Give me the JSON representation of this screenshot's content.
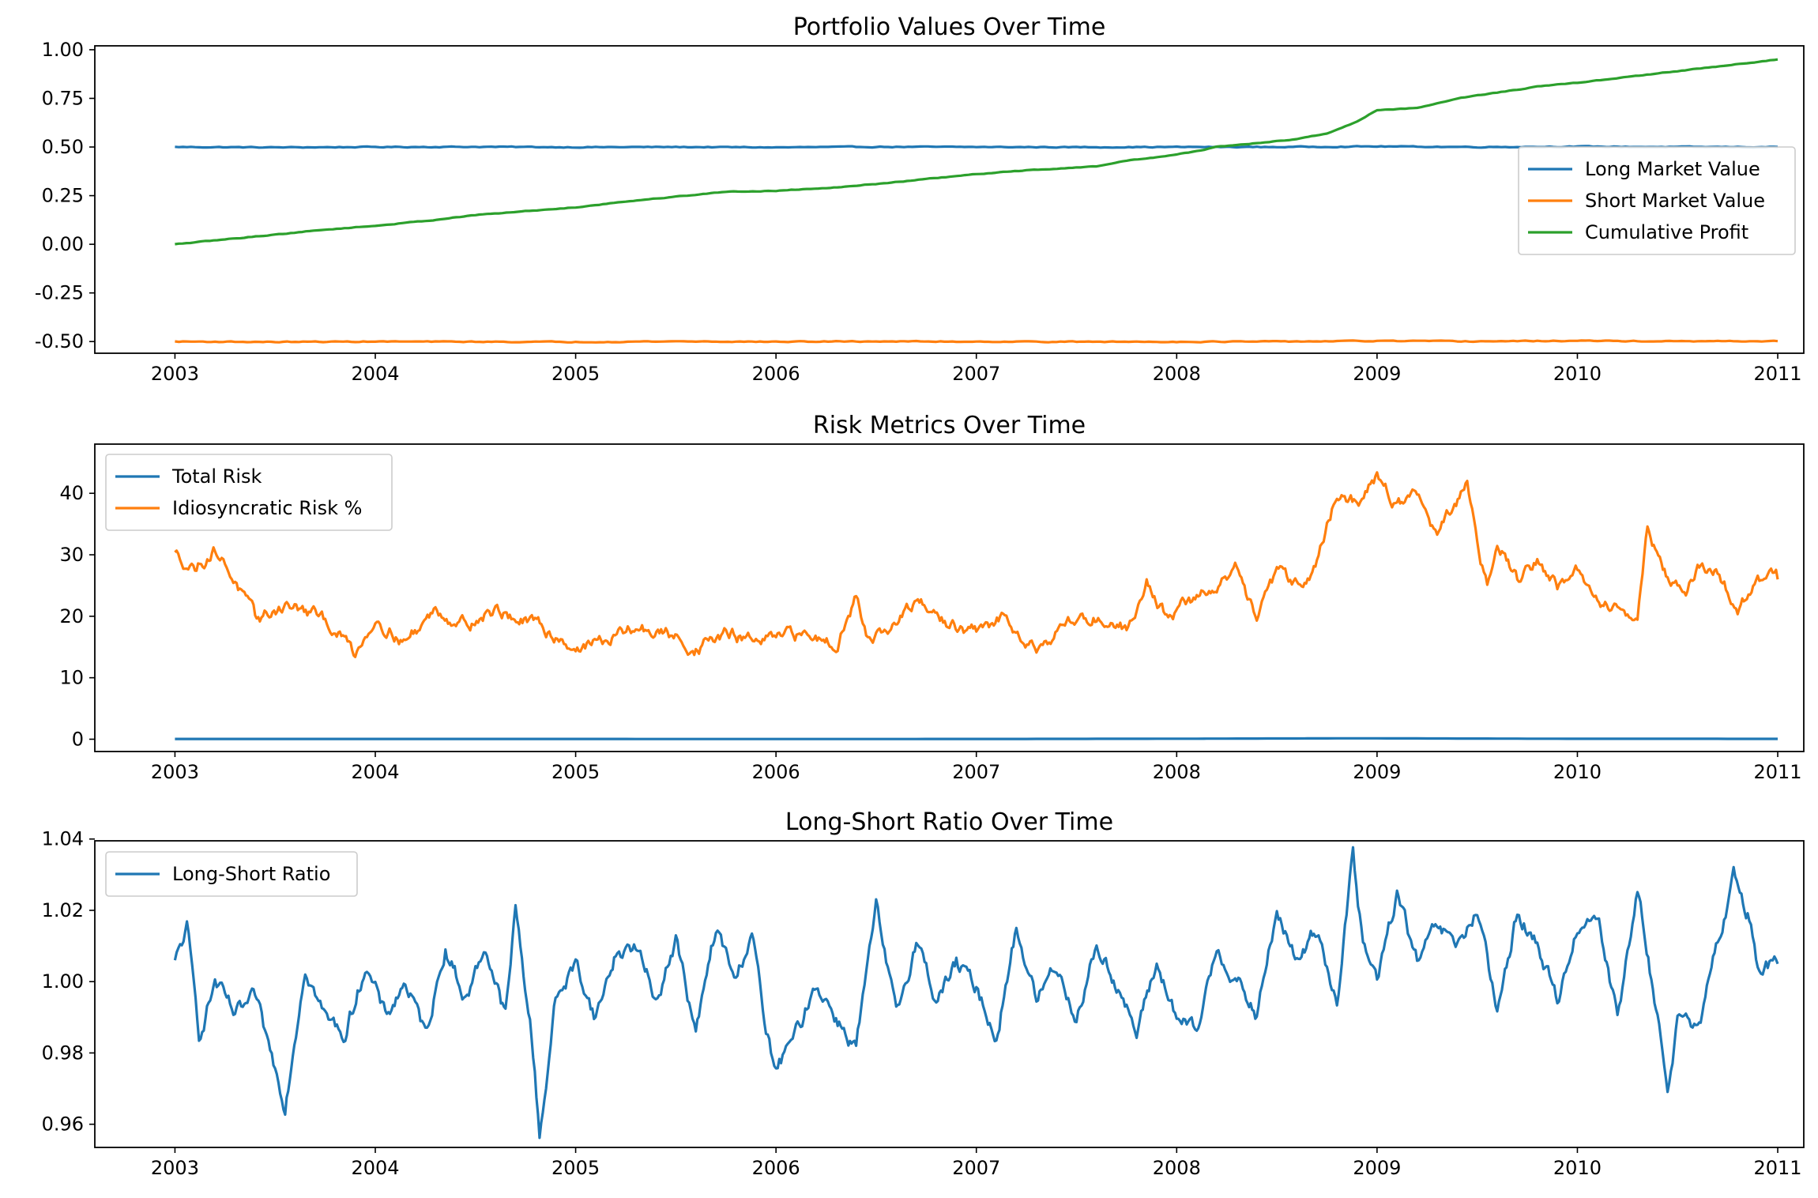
{
  "colors": {
    "blue": "#1f77b4",
    "orange": "#ff7f0e",
    "green": "#2ca02c"
  },
  "chart_data": [
    {
      "type": "line",
      "title": "Portfolio Values Over Time",
      "xlabel": "",
      "ylabel": "",
      "xlim": [
        2002.6,
        2011.13
      ],
      "ylim": [
        -0.56,
        1.02
      ],
      "xticks": [
        "2003",
        "2004",
        "2005",
        "2006",
        "2007",
        "2008",
        "2009",
        "2010",
        "2011"
      ],
      "yticks": [
        "-0.50",
        "-0.25",
        "0.00",
        "0.25",
        "0.50",
        "0.75",
        "1.00"
      ],
      "ytick_values": [
        -0.5,
        -0.25,
        0.0,
        0.25,
        0.5,
        0.75,
        1.0
      ],
      "legend_position": "center-right",
      "grid": false,
      "series": [
        {
          "name": "Long Market Value",
          "color": "#1f77b4",
          "x": [
            2003,
            2003.5,
            2004,
            2004.5,
            2005,
            2005.5,
            2006,
            2006.5,
            2007,
            2007.5,
            2008,
            2008.5,
            2009,
            2009.5,
            2010,
            2010.5,
            2011
          ],
          "y": [
            0.5,
            0.498,
            0.5,
            0.501,
            0.499,
            0.5,
            0.498,
            0.501,
            0.5,
            0.499,
            0.5,
            0.5,
            0.503,
            0.5,
            0.502,
            0.5,
            0.5
          ]
        },
        {
          "name": "Short Market Value",
          "color": "#ff7f0e",
          "x": [
            2003,
            2003.5,
            2004,
            2004.5,
            2005,
            2005.5,
            2006,
            2006.5,
            2007,
            2007.5,
            2008,
            2008.5,
            2009,
            2009.5,
            2010,
            2010.5,
            2011
          ],
          "y": [
            -0.5,
            -0.502,
            -0.5,
            -0.501,
            -0.502,
            -0.499,
            -0.501,
            -0.499,
            -0.5,
            -0.501,
            -0.501,
            -0.5,
            -0.497,
            -0.499,
            -0.496,
            -0.499,
            -0.498
          ]
        },
        {
          "name": "Cumulative Profit",
          "color": "#2ca02c",
          "x": [
            2003,
            2003.25,
            2003.5,
            2003.75,
            2004,
            2004.25,
            2004.5,
            2004.75,
            2005,
            2005.25,
            2005.5,
            2005.75,
            2006,
            2006.25,
            2006.5,
            2006.75,
            2007,
            2007.25,
            2007.5,
            2007.6,
            2007.75,
            2008,
            2008.2,
            2008.4,
            2008.6,
            2008.75,
            2008.9,
            2009,
            2009.2,
            2009.4,
            2009.6,
            2009.8,
            2010,
            2010.25,
            2010.5,
            2010.75,
            2011
          ],
          "y": [
            0.0,
            0.025,
            0.05,
            0.075,
            0.095,
            0.12,
            0.15,
            0.17,
            0.19,
            0.22,
            0.245,
            0.27,
            0.275,
            0.29,
            0.31,
            0.335,
            0.36,
            0.38,
            0.395,
            0.4,
            0.43,
            0.46,
            0.5,
            0.52,
            0.54,
            0.57,
            0.63,
            0.69,
            0.7,
            0.75,
            0.78,
            0.81,
            0.83,
            0.86,
            0.89,
            0.92,
            0.95
          ]
        }
      ]
    },
    {
      "type": "line",
      "title": "Risk Metrics Over Time",
      "xlabel": "",
      "ylabel": "",
      "xlim": [
        2002.6,
        2011.13
      ],
      "ylim": [
        -2,
        48
      ],
      "xticks": [
        "2003",
        "2004",
        "2005",
        "2006",
        "2007",
        "2008",
        "2009",
        "2010",
        "2011"
      ],
      "yticks": [
        "0",
        "10",
        "20",
        "30",
        "40"
      ],
      "ytick_values": [
        0,
        10,
        20,
        30,
        40
      ],
      "legend_position": "upper-left",
      "grid": false,
      "series": [
        {
          "name": "Total Risk",
          "color": "#1f77b4",
          "x": [
            2003,
            2004,
            2005,
            2006,
            2007,
            2008,
            2008.9,
            2009.3,
            2010,
            2011
          ],
          "y": [
            0.05,
            0.04,
            0.04,
            0.03,
            0.04,
            0.08,
            0.15,
            0.12,
            0.07,
            0.06
          ]
        },
        {
          "name": "Idiosyncratic Risk %",
          "color": "#ff7f0e",
          "x": [
            2003,
            2003.1,
            2003.2,
            2003.3,
            2003.4,
            2003.55,
            2003.7,
            2003.8,
            2003.9,
            2004,
            2004.15,
            2004.3,
            2004.45,
            2004.6,
            2004.75,
            2004.9,
            2005,
            2005.15,
            2005.3,
            2005.45,
            2005.6,
            2005.75,
            2005.9,
            2006,
            2006.15,
            2006.3,
            2006.4,
            2006.45,
            2006.55,
            2006.7,
            2006.85,
            2007,
            2007.15,
            2007.3,
            2007.45,
            2007.6,
            2007.75,
            2007.85,
            2007.95,
            2008.1,
            2008.2,
            2008.3,
            2008.4,
            2008.5,
            2008.6,
            2008.7,
            2008.8,
            2008.9,
            2009.0,
            2009.1,
            2009.2,
            2009.3,
            2009.45,
            2009.55,
            2009.6,
            2009.7,
            2009.8,
            2009.9,
            2010.0,
            2010.1,
            2010.2,
            2010.3,
            2010.35,
            2010.45,
            2010.55,
            2010.6,
            2010.7,
            2010.8,
            2010.9,
            2011.0
          ],
          "y": [
            30,
            28,
            31,
            26,
            19,
            22,
            20,
            18,
            14,
            20,
            16,
            21,
            19,
            21,
            19,
            17,
            15,
            16,
            18,
            17,
            15,
            17,
            16,
            16,
            17,
            16,
            23,
            18,
            17,
            22,
            19,
            17,
            20,
            15,
            19,
            20,
            18,
            26,
            20,
            23,
            25,
            28,
            19,
            27,
            25,
            29,
            40,
            38,
            43,
            38,
            40,
            33,
            41,
            25,
            33,
            26,
            29,
            25,
            27,
            22,
            22,
            19,
            35,
            26,
            24,
            28,
            27,
            21,
            26,
            26
          ]
        }
      ]
    },
    {
      "type": "line",
      "title": "Long-Short Ratio Over Time",
      "xlabel": "",
      "ylabel": "",
      "xlim": [
        2002.6,
        2011.13
      ],
      "ylim": [
        0.9535,
        1.0395
      ],
      "xticks": [
        "2003",
        "2004",
        "2005",
        "2006",
        "2007",
        "2008",
        "2009",
        "2010",
        "2011"
      ],
      "yticks": [
        "0.96",
        "0.98",
        "1.00",
        "1.02",
        "1.04"
      ],
      "ytick_values": [
        0.96,
        0.98,
        1.0,
        1.02,
        1.04
      ],
      "legend_position": "upper-left",
      "grid": false,
      "series": [
        {
          "name": "Long-Short Ratio",
          "color": "#1f77b4",
          "x": [
            2003,
            2003.06,
            2003.12,
            2003.2,
            2003.3,
            2003.4,
            2003.45,
            2003.55,
            2003.65,
            2003.75,
            2003.85,
            2003.95,
            2004.05,
            2004.15,
            2004.25,
            2004.35,
            2004.45,
            2004.55,
            2004.65,
            2004.7,
            2004.78,
            2004.82,
            2004.9,
            2005.0,
            2005.1,
            2005.2,
            2005.3,
            2005.4,
            2005.5,
            2005.6,
            2005.7,
            2005.8,
            2005.88,
            2005.95,
            2006.0,
            2006.1,
            2006.2,
            2006.3,
            2006.4,
            2006.5,
            2006.6,
            2006.7,
            2006.8,
            2006.9,
            2007.0,
            2007.1,
            2007.2,
            2007.3,
            2007.4,
            2007.5,
            2007.6,
            2007.7,
            2007.8,
            2007.9,
            2008.0,
            2008.1,
            2008.2,
            2008.3,
            2008.4,
            2008.5,
            2008.6,
            2008.7,
            2008.8,
            2008.88,
            2008.93,
            2009.0,
            2009.1,
            2009.2,
            2009.3,
            2009.4,
            2009.5,
            2009.6,
            2009.7,
            2009.8,
            2009.9,
            2010.0,
            2010.1,
            2010.2,
            2010.3,
            2010.4,
            2010.45,
            2010.5,
            2010.6,
            2010.7,
            2010.78,
            2010.85,
            2010.9,
            2011.0
          ],
          "y": [
            1.005,
            1.015,
            0.985,
            1.0,
            0.99,
            0.995,
            0.985,
            0.966,
            1.005,
            0.99,
            0.985,
            1.005,
            0.99,
            1.0,
            0.985,
            1.01,
            0.995,
            1.01,
            0.99,
            1.02,
            0.985,
            0.957,
            0.995,
            1.005,
            0.99,
            1.008,
            1.01,
            0.995,
            1.012,
            0.985,
            1.015,
            1.0,
            1.015,
            0.985,
            0.975,
            0.985,
            1.0,
            0.99,
            0.982,
            1.02,
            0.99,
            1.012,
            0.995,
            1.005,
            0.998,
            0.985,
            1.015,
            0.995,
            1.005,
            0.99,
            1.01,
            1.0,
            0.985,
            1.005,
            0.99,
            0.985,
            1.01,
            1.0,
            0.99,
            1.02,
            1.005,
            1.015,
            0.995,
            1.035,
            1.01,
            1.0,
            1.025,
            1.005,
            1.015,
            1.01,
            1.02,
            0.99,
            1.02,
            1.01,
            0.995,
            1.015,
            1.02,
            0.99,
            1.025,
            0.99,
            0.97,
            0.99,
            0.985,
            1.01,
            1.03,
            1.02,
            1.005,
            1.005
          ]
        }
      ]
    }
  ]
}
